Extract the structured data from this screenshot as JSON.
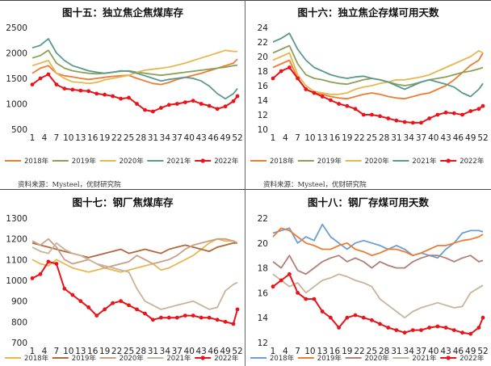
{
  "sources": {
    "top_left": "资料来源：Mysteel，优财研究院",
    "top_right": "资料来源：Mysteel，优财研究院"
  },
  "week_ticks": [
    "1",
    "4",
    "7",
    "10",
    "13",
    "16",
    "19",
    "22",
    "25",
    "28",
    "31",
    "34",
    "37",
    "40",
    "43",
    "46",
    "49",
    "52"
  ],
  "series_colors": {
    "2018年": "#ed7d31",
    "2019年": "#c9a227",
    "2020年": "#e6b84f",
    "2021年": "#5b9a8b",
    "2022年": "#e8141a"
  },
  "chart_data": [
    {
      "type": "line",
      "title": "图十五：独立焦企焦煤库存",
      "ylim": [
        500,
        2500
      ],
      "yticks": [
        "500",
        "1000",
        "1500",
        "2000",
        "2500"
      ],
      "grid": false,
      "legend": "bottom",
      "x": [
        1,
        3,
        5,
        7,
        9,
        11,
        13,
        15,
        17,
        19,
        21,
        23,
        25,
        27,
        29,
        31,
        33,
        35,
        37,
        39,
        41,
        43,
        45,
        47,
        49,
        51,
        52
      ],
      "series": [
        {
          "name": "2018年",
          "color": "#ed7d31",
          "values": [
            1600,
            1700,
            1750,
            1600,
            1550,
            1530,
            1500,
            1480,
            1500,
            1520,
            1540,
            1550,
            1560,
            1500,
            1450,
            1400,
            1380,
            1420,
            1480,
            1520,
            1560,
            1600,
            1650,
            1700,
            1750,
            1800,
            1880
          ]
        },
        {
          "name": "2019年",
          "color": "#8aa15a",
          "values": [
            1900,
            1950,
            2050,
            1800,
            1700,
            1650,
            1620,
            1600,
            1590,
            1600,
            1620,
            1640,
            1650,
            1620,
            1600,
            1580,
            1560,
            1580,
            1600,
            1620,
            1640,
            1660,
            1680,
            1700,
            1720,
            1750,
            1760
          ]
        },
        {
          "name": "2020年",
          "color": "#e6b84f",
          "values": [
            1750,
            1800,
            1850,
            1600,
            1500,
            1430,
            1420,
            1400,
            1420,
            1470,
            1500,
            1530,
            1560,
            1620,
            1660,
            1680,
            1700,
            1720,
            1760,
            1800,
            1850,
            1900,
            1950,
            2000,
            2050,
            2030,
            2030
          ]
        },
        {
          "name": "2021年",
          "color": "#5b9a8b",
          "values": [
            2100,
            2150,
            2280,
            2000,
            1850,
            1750,
            1700,
            1650,
            1620,
            1600,
            1620,
            1650,
            1640,
            1600,
            1550,
            1500,
            1450,
            1480,
            1500,
            1520,
            1500,
            1450,
            1350,
            1200,
            1100,
            1200,
            1300
          ]
        },
        {
          "name": "2022年",
          "color": "#e8141a",
          "values": [
            1380,
            1500,
            1580,
            1380,
            1300,
            1280,
            1260,
            1250,
            1200,
            1180,
            1150,
            1100,
            1120,
            1000,
            880,
            850,
            920,
            980,
            1000,
            1030,
            1060,
            1000,
            960,
            900,
            950,
            1050,
            1150
          ]
        }
      ]
    },
    {
      "type": "line",
      "title": "图十六：独立焦企存煤可用天数",
      "ylim": [
        10,
        24
      ],
      "yticks": [
        "10",
        "12",
        "14",
        "16",
        "18",
        "20",
        "22",
        "24"
      ],
      "grid": false,
      "legend": "bottom",
      "x": [
        1,
        3,
        5,
        7,
        9,
        11,
        13,
        15,
        17,
        19,
        21,
        23,
        25,
        27,
        29,
        31,
        33,
        35,
        37,
        39,
        41,
        43,
        45,
        47,
        49,
        51,
        52
      ],
      "series": [
        {
          "name": "2018年",
          "color": "#ed7d31",
          "values": [
            18.5,
            19.0,
            19.5,
            17.0,
            15.5,
            15.0,
            14.8,
            14.5,
            14.3,
            14.2,
            14.5,
            14.8,
            15.0,
            14.8,
            14.5,
            14.3,
            14.2,
            14.5,
            14.8,
            15.0,
            15.5,
            16.0,
            16.8,
            17.8,
            18.8,
            19.5,
            20.5
          ]
        },
        {
          "name": "2019年",
          "color": "#8aa15a",
          "values": [
            20.5,
            21.0,
            21.5,
            19.0,
            17.5,
            17.0,
            16.8,
            16.5,
            16.3,
            16.2,
            16.5,
            16.8,
            17.0,
            16.8,
            16.5,
            16.2,
            16.0,
            16.2,
            16.5,
            16.8,
            17.0,
            17.2,
            17.5,
            17.8,
            18.0,
            18.3,
            18.5
          ]
        },
        {
          "name": "2020年",
          "color": "#e6b84f",
          "values": [
            19.5,
            20.0,
            20.5,
            17.5,
            16.0,
            15.2,
            15.0,
            14.8,
            14.8,
            15.0,
            15.5,
            15.8,
            16.0,
            16.3,
            16.5,
            16.8,
            16.8,
            17.0,
            17.2,
            17.5,
            18.0,
            18.5,
            19.0,
            19.5,
            20.0,
            20.8,
            20.5
          ]
        },
        {
          "name": "2021年",
          "color": "#5b9a8b",
          "values": [
            22.0,
            22.5,
            23.2,
            21.0,
            19.5,
            18.5,
            18.0,
            17.5,
            17.2,
            17.0,
            17.2,
            17.3,
            17.0,
            16.8,
            16.5,
            16.0,
            15.5,
            16.0,
            16.5,
            16.8,
            16.5,
            16.2,
            15.8,
            15.0,
            14.5,
            15.5,
            16.3
          ]
        },
        {
          "name": "2022年",
          "color": "#e8141a",
          "values": [
            17.0,
            18.0,
            18.5,
            17.0,
            15.5,
            15.0,
            14.5,
            14.0,
            13.5,
            13.2,
            12.8,
            12.0,
            12.0,
            11.8,
            11.5,
            11.2,
            11.0,
            10.9,
            10.9,
            11.5,
            12.0,
            12.3,
            12.2,
            12.0,
            12.5,
            12.8,
            13.2
          ]
        }
      ]
    },
    {
      "type": "line",
      "title": "图十七：钢厂焦煤库存",
      "ylim": [
        700,
        1300
      ],
      "yticks": [
        "700",
        "800",
        "900",
        "1000",
        "1100",
        "1200",
        "1300"
      ],
      "grid": false,
      "legend": "bottom",
      "x": [
        1,
        3,
        5,
        7,
        9,
        11,
        13,
        15,
        17,
        19,
        21,
        23,
        25,
        27,
        29,
        31,
        33,
        35,
        37,
        39,
        41,
        43,
        45,
        47,
        49,
        51,
        52
      ],
      "series": [
        {
          "name": "2018年",
          "color": "#e6b84f",
          "values": [
            1100,
            1080,
            1070,
            1100,
            1080,
            1060,
            1050,
            1040,
            1050,
            1060,
            1050,
            1040,
            1050,
            1060,
            1070,
            1080,
            1050,
            1060,
            1080,
            1100,
            1120,
            1150,
            1180,
            1200,
            1190,
            1190,
            1180
          ]
        },
        {
          "name": "2019年",
          "color": "#b3673b",
          "values": [
            1180,
            1170,
            1160,
            1150,
            1140,
            1130,
            1120,
            1110,
            1120,
            1130,
            1140,
            1150,
            1130,
            1140,
            1150,
            1140,
            1130,
            1150,
            1160,
            1170,
            1160,
            1150,
            1140,
            1160,
            1170,
            1180,
            1180
          ]
        },
        {
          "name": "2020年",
          "color": "#c8a088",
          "values": [
            1190,
            1170,
            1200,
            1160,
            1100,
            1080,
            1090,
            1100,
            1080,
            1060,
            1070,
            1080,
            1090,
            1120,
            1100,
            1080,
            1090,
            1100,
            1120,
            1150,
            1170,
            1180,
            1190,
            1200,
            1200,
            1190,
            1180
          ]
        },
        {
          "name": "2021年",
          "color": "#c9b49a",
          "values": [
            1160,
            1140,
            1130,
            1180,
            1150,
            1130,
            1120,
            1100,
            1080,
            1070,
            1060,
            1050,
            1040,
            960,
            900,
            880,
            860,
            870,
            880,
            890,
            900,
            880,
            860,
            870,
            950,
            980,
            990
          ]
        },
        {
          "name": "2022年",
          "color": "#e8141a",
          "values": [
            1010,
            1030,
            1090,
            1080,
            960,
            930,
            900,
            870,
            830,
            860,
            890,
            900,
            880,
            860,
            840,
            810,
            820,
            820,
            820,
            830,
            830,
            820,
            820,
            810,
            800,
            790,
            860
          ]
        }
      ]
    },
    {
      "type": "line",
      "title": "图十八：钢厂存煤可用天数",
      "ylim": [
        12,
        22
      ],
      "yticks": [
        "12",
        "14",
        "16",
        "18",
        "20",
        "22"
      ],
      "grid": false,
      "legend": "bottom",
      "x": [
        1,
        3,
        5,
        7,
        9,
        11,
        13,
        15,
        17,
        19,
        21,
        23,
        25,
        27,
        29,
        31,
        33,
        35,
        37,
        39,
        41,
        43,
        45,
        47,
        49,
        51,
        52
      ],
      "series": [
        {
          "name": "2018年",
          "color": "#6b9fd1",
          "values": [
            20.8,
            21.0,
            21.2,
            20.0,
            20.5,
            20.2,
            21.5,
            20.5,
            20.0,
            19.5,
            20.0,
            20.2,
            20.0,
            19.8,
            19.5,
            19.8,
            19.5,
            19.0,
            19.2,
            19.0,
            18.8,
            19.5,
            20.0,
            20.8,
            21.0,
            21.0,
            20.9
          ]
        },
        {
          "name": "2019年",
          "color": "#ed7d31",
          "values": [
            20.5,
            21.2,
            21.0,
            20.5,
            20.0,
            19.8,
            19.5,
            19.5,
            19.8,
            20.0,
            19.5,
            19.3,
            19.0,
            19.2,
            19.5,
            19.5,
            19.3,
            19.0,
            19.2,
            19.5,
            19.8,
            19.8,
            20.0,
            20.2,
            20.3,
            20.5,
            20.7
          ]
        },
        {
          "name": "2020年",
          "color": "#b0807a",
          "values": [
            18.5,
            18.0,
            19.0,
            17.8,
            17.5,
            18.0,
            18.5,
            18.8,
            19.0,
            18.5,
            18.8,
            18.5,
            18.0,
            18.5,
            18.2,
            18.0,
            18.0,
            18.5,
            18.8,
            19.0,
            19.0,
            18.8,
            18.5,
            18.8,
            19.0,
            18.5,
            18.6
          ]
        },
        {
          "name": "2021年",
          "color": "#c9b49a",
          "values": [
            17.5,
            17.0,
            16.5,
            16.8,
            16.0,
            16.5,
            17.0,
            17.2,
            17.5,
            17.3,
            17.0,
            16.8,
            16.5,
            15.5,
            15.0,
            14.5,
            14.0,
            14.5,
            14.8,
            15.0,
            15.2,
            15.0,
            14.8,
            14.9,
            16.0,
            16.4,
            16.6
          ]
        },
        {
          "name": "2022年",
          "color": "#e8141a",
          "values": [
            16.5,
            17.0,
            17.5,
            16.0,
            15.5,
            15.5,
            14.5,
            14.0,
            13.2,
            14.0,
            14.2,
            14.0,
            13.8,
            13.5,
            13.2,
            13.0,
            12.8,
            13.0,
            13.0,
            13.2,
            13.3,
            13.2,
            13.0,
            12.8,
            12.7,
            13.2,
            14.0
          ]
        }
      ]
    }
  ]
}
